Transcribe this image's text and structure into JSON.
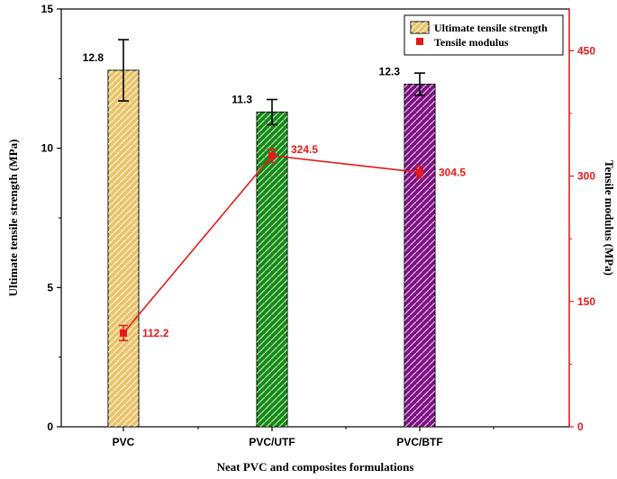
{
  "chart_data": {
    "type": "bar",
    "categories": [
      "PVC",
      "PVC/UTF",
      "PVC/BTF"
    ],
    "xlabel": "Neat PVC and composites formulations",
    "series": [
      {
        "name": "Ultimate tensile strength",
        "axis": "left",
        "values": [
          12.8,
          11.3,
          12.3
        ],
        "errors": [
          1.1,
          0.45,
          0.4
        ],
        "labels": [
          "12.8",
          "11.3",
          "12.3"
        ],
        "colors": [
          "#e9c46a",
          "#138a13",
          "#7d1183"
        ]
      },
      {
        "name": "Tensile modulus",
        "axis": "right",
        "type": "line",
        "values": [
          112.2,
          324.5,
          304.5
        ],
        "errors": [
          9,
          8,
          7
        ],
        "labels": [
          "112.2",
          "324.5",
          "304.5"
        ],
        "color": "#e5191b"
      }
    ],
    "y_left": {
      "label": "Ultimate tensile strength (MPa)",
      "lim": [
        0,
        15
      ],
      "ticks": [
        0,
        5,
        10,
        15
      ],
      "tick_labels": [
        "0",
        "5",
        "10",
        "15"
      ]
    },
    "y_right": {
      "label": "Tensile modulus (MPa)",
      "lim": [
        0,
        500
      ],
      "ticks": [
        0,
        150,
        300,
        450
      ],
      "tick_labels": [
        "0",
        "150",
        "300",
        "450"
      ],
      "color": "#e5191b"
    },
    "legend": {
      "position": "top-right",
      "entries": [
        "Ultimate tensile strength",
        "Tensile modulus"
      ]
    },
    "grid": false
  }
}
